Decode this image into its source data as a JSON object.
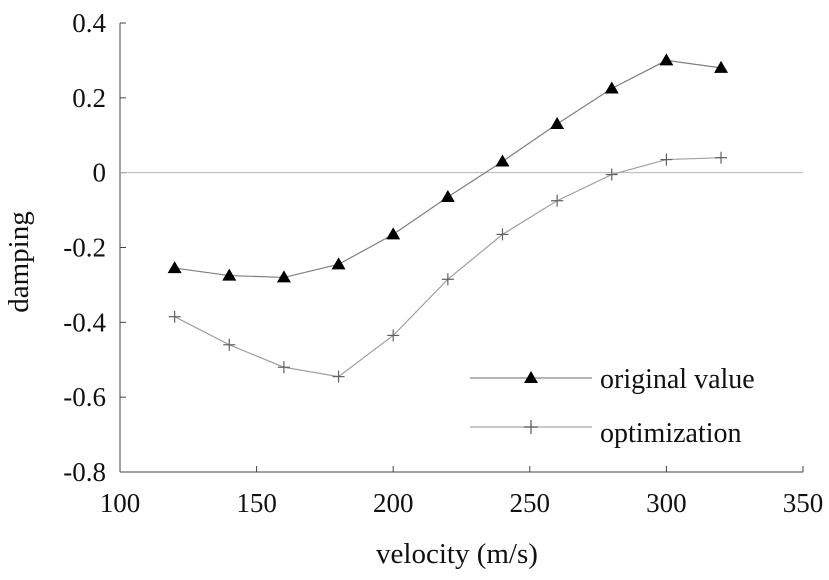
{
  "chart_data": {
    "type": "line",
    "title": "",
    "xlabel": "velocity (m/s)",
    "ylabel": "damping",
    "xlim": [
      100,
      350
    ],
    "ylim": [
      -0.8,
      0.4
    ],
    "x_ticks": [
      "100",
      "150",
      "200",
      "250",
      "300",
      "350"
    ],
    "y_ticks": [
      "0.4",
      "0.2",
      "0",
      "-0.2",
      "-0.4",
      "-0.6",
      "-0.8"
    ],
    "grid": false,
    "zero_line": true,
    "legend_position": "bottom-right",
    "x": [
      120,
      140,
      160,
      180,
      200,
      220,
      240,
      260,
      280,
      300,
      320
    ],
    "series": [
      {
        "name": "original value",
        "marker": "triangle",
        "color": "#7f7f7f",
        "marker_color": "#000000",
        "values": [
          -0.255,
          -0.275,
          -0.28,
          -0.245,
          -0.165,
          -0.065,
          0.03,
          0.13,
          0.225,
          0.3,
          0.28
        ]
      },
      {
        "name": "optimization",
        "marker": "plus",
        "color": "#a0a0a0",
        "marker_color": "#606060",
        "values": [
          -0.385,
          -0.46,
          -0.52,
          -0.545,
          -0.435,
          -0.285,
          -0.165,
          -0.075,
          -0.005,
          0.035,
          0.04
        ]
      }
    ]
  }
}
